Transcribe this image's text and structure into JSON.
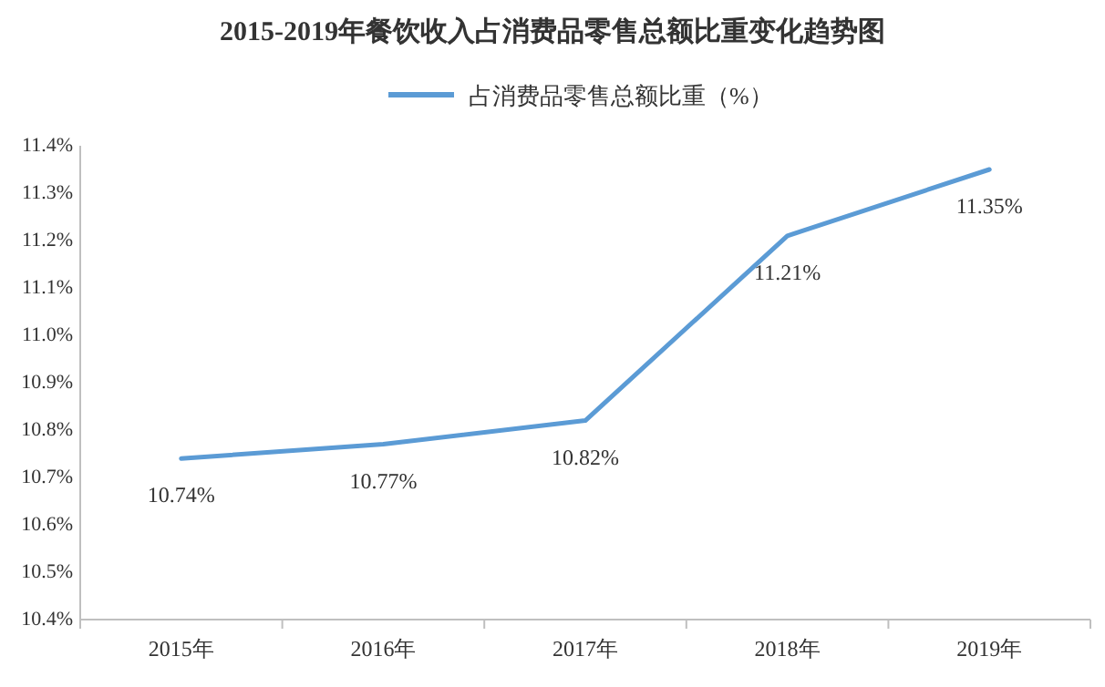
{
  "chart_data": {
    "type": "line",
    "title": "2015-2019年餐饮收入占消费品零售总额比重变化趋势图",
    "categories": [
      "2015年",
      "2016年",
      "2017年",
      "2018年",
      "2019年"
    ],
    "series": [
      {
        "name": "占消费品零售总额比重（%）",
        "color": "#5b9bd5",
        "values": [
          10.74,
          10.77,
          10.82,
          11.21,
          11.35
        ],
        "value_labels": [
          "10.74%",
          "10.77%",
          "10.82%",
          "11.21%",
          "11.35%"
        ]
      }
    ],
    "ylim": [
      10.4,
      11.4
    ],
    "yticks": [
      {
        "value": 10.4,
        "label": "10.4%"
      },
      {
        "value": 10.5,
        "label": "10.5%"
      },
      {
        "value": 10.6,
        "label": "10.6%"
      },
      {
        "value": 10.7,
        "label": "10.7%"
      },
      {
        "value": 10.8,
        "label": "10.8%"
      },
      {
        "value": 10.9,
        "label": "10.9%"
      },
      {
        "value": 11.0,
        "label": "11.0%"
      },
      {
        "value": 11.1,
        "label": "11.1%"
      },
      {
        "value": 11.2,
        "label": "11.2%"
      },
      {
        "value": 11.3,
        "label": "11.3%"
      },
      {
        "value": 11.4,
        "label": "11.4%"
      }
    ],
    "grid": false,
    "legend": "top",
    "marker": "none",
    "line_style": "solid"
  }
}
